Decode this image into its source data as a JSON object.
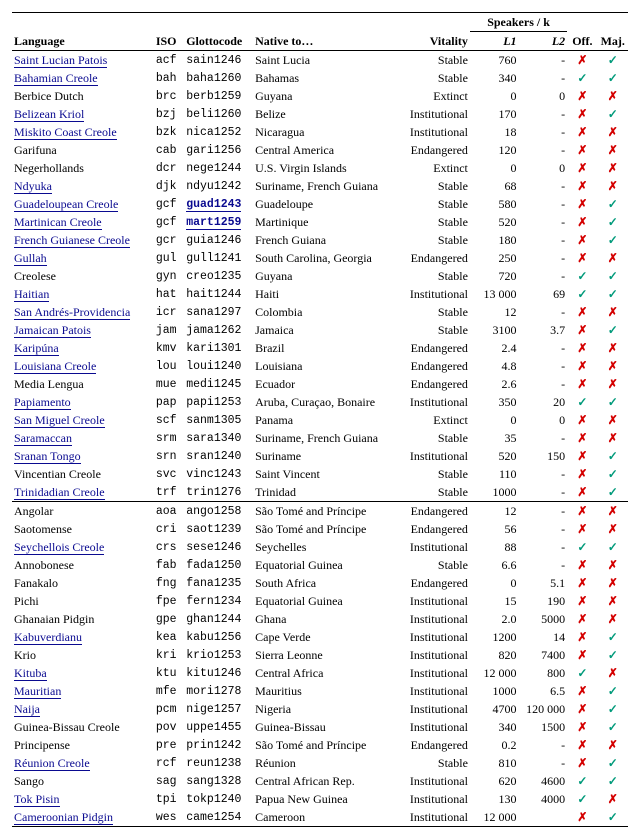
{
  "glyphs": {
    "yes": "✓",
    "no": "✗"
  },
  "headers": {
    "language": "Language",
    "iso": "ISO",
    "glotto": "Glottocode",
    "native": "Native to…",
    "vitality": "Vitality",
    "speakers": "Speakers / k",
    "l1": "L1",
    "l2": "L2",
    "off": "Off.",
    "maj": "Maj."
  },
  "sections": [
    {
      "rows": [
        {
          "lang": "Saint Lucian Patois",
          "link": true,
          "iso": "acf",
          "glotto": "sain1246",
          "glink": false,
          "native": "Saint Lucia",
          "vital": "Stable",
          "l1": "760",
          "l2": "-",
          "off": "no",
          "maj": "yes"
        },
        {
          "lang": "Bahamian Creole",
          "link": true,
          "iso": "bah",
          "glotto": "baha1260",
          "glink": false,
          "native": "Bahamas",
          "vital": "Stable",
          "l1": "340",
          "l2": "-",
          "off": "yes",
          "maj": "yes"
        },
        {
          "lang": "Berbice Dutch",
          "link": false,
          "iso": "brc",
          "glotto": "berb1259",
          "glink": false,
          "native": "Guyana",
          "vital": "Extinct",
          "l1": "0",
          "l2": "0",
          "off": "no",
          "maj": "no"
        },
        {
          "lang": "Belizean Kriol",
          "link": true,
          "iso": "bzj",
          "glotto": "beli1260",
          "glink": false,
          "native": "Belize",
          "vital": "Institutional",
          "l1": "170",
          "l2": "-",
          "off": "no",
          "maj": "yes"
        },
        {
          "lang": "Miskito Coast Creole",
          "link": true,
          "iso": "bzk",
          "glotto": "nica1252",
          "glink": false,
          "native": "Nicaragua",
          "vital": "Institutional",
          "l1": "18",
          "l2": "-",
          "off": "no",
          "maj": "no"
        },
        {
          "lang": "Garifuna",
          "link": false,
          "iso": "cab",
          "glotto": "gari1256",
          "glink": false,
          "native": "Central America",
          "vital": "Endangered",
          "l1": "120",
          "l2": "-",
          "off": "no",
          "maj": "no"
        },
        {
          "lang": "Negerhollands",
          "link": false,
          "iso": "dcr",
          "glotto": "nege1244",
          "glink": false,
          "native": "U.S. Virgin Islands",
          "vital": "Extinct",
          "l1": "0",
          "l2": "0",
          "off": "no",
          "maj": "no"
        },
        {
          "lang": "Ndyuka",
          "link": true,
          "iso": "djk",
          "glotto": "ndyu1242",
          "glink": false,
          "native": "Suriname, French Guiana",
          "vital": "Stable",
          "l1": "68",
          "l2": "-",
          "off": "no",
          "maj": "no"
        },
        {
          "lang": "Guadeloupean Creole",
          "link": true,
          "iso": "gcf",
          "glotto": "guad1243",
          "glink": true,
          "native": "Guadeloupe",
          "vital": "Stable",
          "l1": "580",
          "l2": "-",
          "off": "no",
          "maj": "yes"
        },
        {
          "lang": "Martinican Creole",
          "link": true,
          "iso": "gcf",
          "glotto": "mart1259",
          "glink": true,
          "native": "Martinique",
          "vital": "Stable",
          "l1": "520",
          "l2": "-",
          "off": "no",
          "maj": "yes"
        },
        {
          "lang": "French Guianese Creole",
          "link": true,
          "iso": "gcr",
          "glotto": "guia1246",
          "glink": false,
          "native": "French Guiana",
          "vital": "Stable",
          "l1": "180",
          "l2": "-",
          "off": "no",
          "maj": "yes"
        },
        {
          "lang": "Gullah",
          "link": true,
          "iso": "gul",
          "glotto": "gull1241",
          "glink": false,
          "native": "South Carolina, Georgia",
          "vital": "Endangered",
          "l1": "250",
          "l2": "-",
          "off": "no",
          "maj": "no"
        },
        {
          "lang": "Creolese",
          "link": false,
          "iso": "gyn",
          "glotto": "creo1235",
          "glink": false,
          "native": "Guyana",
          "vital": "Stable",
          "l1": "720",
          "l2": "-",
          "off": "yes",
          "maj": "yes"
        },
        {
          "lang": "Haitian",
          "link": true,
          "iso": "hat",
          "glotto": "hait1244",
          "glink": false,
          "native": "Haiti",
          "vital": "Institutional",
          "l1": "13 000",
          "l2": "69",
          "off": "yes",
          "maj": "yes"
        },
        {
          "lang": "San Andrés-Providencia",
          "link": true,
          "iso": "icr",
          "glotto": "sana1297",
          "glink": false,
          "native": "Colombia",
          "vital": "Stable",
          "l1": "12",
          "l2": "-",
          "off": "no",
          "maj": "no"
        },
        {
          "lang": "Jamaican Patois",
          "link": true,
          "iso": "jam",
          "glotto": "jama1262",
          "glink": false,
          "native": "Jamaica",
          "vital": "Stable",
          "l1": "3100",
          "l2": "3.7",
          "off": "no",
          "maj": "yes"
        },
        {
          "lang": "Karipúna",
          "link": true,
          "iso": "kmv",
          "glotto": "kari1301",
          "glink": false,
          "native": "Brazil",
          "vital": "Endangered",
          "l1": "2.4",
          "l2": "-",
          "off": "no",
          "maj": "no"
        },
        {
          "lang": "Louisiana Creole",
          "link": true,
          "iso": "lou",
          "glotto": "loui1240",
          "glink": false,
          "native": "Louisiana",
          "vital": "Endangered",
          "l1": "4.8",
          "l2": "-",
          "off": "no",
          "maj": "no"
        },
        {
          "lang": "Media Lengua",
          "link": false,
          "iso": "mue",
          "glotto": "medi1245",
          "glink": false,
          "native": "Ecuador",
          "vital": "Endangered",
          "l1": "2.6",
          "l2": "-",
          "off": "no",
          "maj": "no"
        },
        {
          "lang": "Papiamento",
          "link": true,
          "iso": "pap",
          "glotto": "papi1253",
          "glink": false,
          "native": "Aruba, Curaçao, Bonaire",
          "vital": "Institutional",
          "l1": "350",
          "l2": "20",
          "off": "yes",
          "maj": "yes"
        },
        {
          "lang": "San Miguel Creole",
          "link": true,
          "iso": "scf",
          "glotto": "sanm1305",
          "glink": false,
          "native": "Panama",
          "vital": "Extinct",
          "l1": "0",
          "l2": "0",
          "off": "no",
          "maj": "no"
        },
        {
          "lang": "Saramaccan",
          "link": true,
          "iso": "srm",
          "glotto": "sara1340",
          "glink": false,
          "native": "Suriname, French Guiana",
          "vital": "Stable",
          "l1": "35",
          "l2": "-",
          "off": "no",
          "maj": "no"
        },
        {
          "lang": "Sranan Tongo",
          "link": true,
          "iso": "srn",
          "glotto": "sran1240",
          "glink": false,
          "native": "Suriname",
          "vital": "Institutional",
          "l1": "520",
          "l2": "150",
          "off": "no",
          "maj": "yes"
        },
        {
          "lang": "Vincentian Creole",
          "link": false,
          "iso": "svc",
          "glotto": "vinc1243",
          "glink": false,
          "native": "Saint Vincent",
          "vital": "Stable",
          "l1": "110",
          "l2": "-",
          "off": "no",
          "maj": "yes"
        },
        {
          "lang": "Trinidadian Creole",
          "link": true,
          "iso": "trf",
          "glotto": "trin1276",
          "glink": false,
          "native": "Trinidad",
          "vital": "Stable",
          "l1": "1000",
          "l2": "-",
          "off": "no",
          "maj": "yes"
        }
      ]
    },
    {
      "rows": [
        {
          "lang": "Angolar",
          "link": false,
          "iso": "aoa",
          "glotto": "ango1258",
          "glink": false,
          "native": "São Tomé and Príncipe",
          "vital": "Endangered",
          "l1": "12",
          "l2": "-",
          "off": "no",
          "maj": "no"
        },
        {
          "lang": "Saotomense",
          "link": false,
          "iso": "cri",
          "glotto": "saot1239",
          "glink": false,
          "native": "São Tomé and Príncipe",
          "vital": "Endangered",
          "l1": "56",
          "l2": "-",
          "off": "no",
          "maj": "no"
        },
        {
          "lang": "Seychellois Creole",
          "link": true,
          "iso": "crs",
          "glotto": "sese1246",
          "glink": false,
          "native": "Seychelles",
          "vital": "Institutional",
          "l1": "88",
          "l2": "-",
          "off": "yes",
          "maj": "yes"
        },
        {
          "lang": "Annobonese",
          "link": false,
          "iso": "fab",
          "glotto": "fada1250",
          "glink": false,
          "native": "Equatorial Guinea",
          "vital": "Stable",
          "l1": "6.6",
          "l2": "-",
          "off": "no",
          "maj": "no"
        },
        {
          "lang": "Fanakalo",
          "link": false,
          "iso": "fng",
          "glotto": "fana1235",
          "glink": false,
          "native": "South Africa",
          "vital": "Endangered",
          "l1": "0",
          "l2": "5.1",
          "off": "no",
          "maj": "no"
        },
        {
          "lang": "Pichi",
          "link": false,
          "iso": "fpe",
          "glotto": "fern1234",
          "glink": false,
          "native": "Equatorial Guinea",
          "vital": "Institutional",
          "l1": "15",
          "l2": "190",
          "off": "no",
          "maj": "no"
        },
        {
          "lang": "Ghanaian Pidgin",
          "link": false,
          "iso": "gpe",
          "glotto": "ghan1244",
          "glink": false,
          "native": "Ghana",
          "vital": "Institutional",
          "l1": "2.0",
          "l2": "5000",
          "off": "no",
          "maj": "no"
        },
        {
          "lang": "Kabuverdianu",
          "link": true,
          "iso": "kea",
          "glotto": "kabu1256",
          "glink": false,
          "native": "Cape Verde",
          "vital": "Institutional",
          "l1": "1200",
          "l2": "14",
          "off": "no",
          "maj": "yes"
        },
        {
          "lang": "Krio",
          "link": false,
          "iso": "kri",
          "glotto": "krio1253",
          "glink": false,
          "native": "Sierra Leonne",
          "vital": "Institutional",
          "l1": "820",
          "l2": "7400",
          "off": "no",
          "maj": "yes"
        },
        {
          "lang": "Kituba",
          "link": true,
          "iso": "ktu",
          "glotto": "kitu1246",
          "glink": false,
          "native": "Central Africa",
          "vital": "Institutional",
          "l1": "12 000",
          "l2": "800",
          "off": "yes",
          "maj": "no"
        },
        {
          "lang": "Mauritian",
          "link": true,
          "iso": "mfe",
          "glotto": "mori1278",
          "glink": false,
          "native": "Mauritius",
          "vital": "Institutional",
          "l1": "1000",
          "l2": "6.5",
          "off": "no",
          "maj": "yes"
        },
        {
          "lang": "Naija",
          "link": true,
          "iso": "pcm",
          "glotto": "nige1257",
          "glink": false,
          "native": "Nigeria",
          "vital": "Institutional",
          "l1": "4700",
          "l2": "120 000",
          "off": "no",
          "maj": "yes"
        },
        {
          "lang": "Guinea-Bissau Creole",
          "link": false,
          "iso": "pov",
          "glotto": "uppe1455",
          "glink": false,
          "native": "Guinea-Bissau",
          "vital": "Institutional",
          "l1": "340",
          "l2": "1500",
          "off": "no",
          "maj": "yes"
        },
        {
          "lang": "Principense",
          "link": false,
          "iso": "pre",
          "glotto": "prin1242",
          "glink": false,
          "native": "São Tomé and Príncipe",
          "vital": "Endangered",
          "l1": "0.2",
          "l2": "-",
          "off": "no",
          "maj": "no"
        },
        {
          "lang": "Réunion Creole",
          "link": true,
          "iso": "rcf",
          "glotto": "reun1238",
          "glink": false,
          "native": "Réunion",
          "vital": "Stable",
          "l1": "810",
          "l2": "-",
          "off": "no",
          "maj": "yes"
        },
        {
          "lang": "Sango",
          "link": false,
          "iso": "sag",
          "glotto": "sang1328",
          "glink": false,
          "native": "Central African Rep.",
          "vital": "Institutional",
          "l1": "620",
          "l2": "4600",
          "off": "yes",
          "maj": "yes"
        },
        {
          "lang": "Tok Pisin",
          "link": true,
          "iso": "tpi",
          "glotto": "tokp1240",
          "glink": false,
          "native": "Papua New Guinea",
          "vital": "Institutional",
          "l1": "130",
          "l2": "4000",
          "off": "yes",
          "maj": "no"
        },
        {
          "lang": "Cameroonian Pidgin",
          "link": true,
          "iso": "wes",
          "glotto": "came1254",
          "glink": false,
          "native": "Cameroon",
          "vital": "Institutional",
          "l1": "12 000",
          "l2": "",
          "off": "no",
          "maj": "yes"
        }
      ]
    }
  ]
}
